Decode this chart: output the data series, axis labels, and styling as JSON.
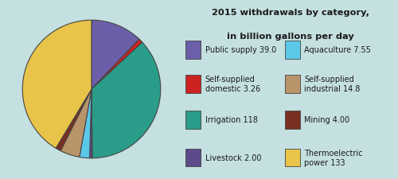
{
  "title_line1": "2015 withdrawals by category,",
  "title_line2": "in billion gallons per day",
  "values": [
    39.0,
    3.26,
    118.0,
    2.0,
    7.55,
    14.8,
    4.0,
    133.0
  ],
  "colors": [
    "#6b5faa",
    "#cc2222",
    "#2a9d8a",
    "#5c4a8a",
    "#5bc8e8",
    "#b8946a",
    "#7a3020",
    "#e8c44a"
  ],
  "background_color": "#c5e0e0",
  "edge_color": "#444444",
  "startangle": 90,
  "legend_left": [
    {
      "label": "Public supply ",
      "bold": "39.0",
      "idx": 0
    },
    {
      "label": "Self-supplied\ndomestic ",
      "bold": "3.26",
      "idx": 1
    },
    {
      "label": "Irrigation ",
      "bold": "118",
      "idx": 2
    },
    {
      "label": "Livestock ",
      "bold": "2.00",
      "idx": 3
    }
  ],
  "legend_right": [
    {
      "label": "Aquaculture ",
      "bold": "7.55",
      "idx": 4
    },
    {
      "label": "Self-supplied\nindustrial ",
      "bold": "14.8",
      "idx": 5
    },
    {
      "label": "Mining ",
      "bold": "4.00",
      "idx": 6
    },
    {
      "label": "Thermoelectric\npower ",
      "bold": "133",
      "idx": 7
    }
  ]
}
